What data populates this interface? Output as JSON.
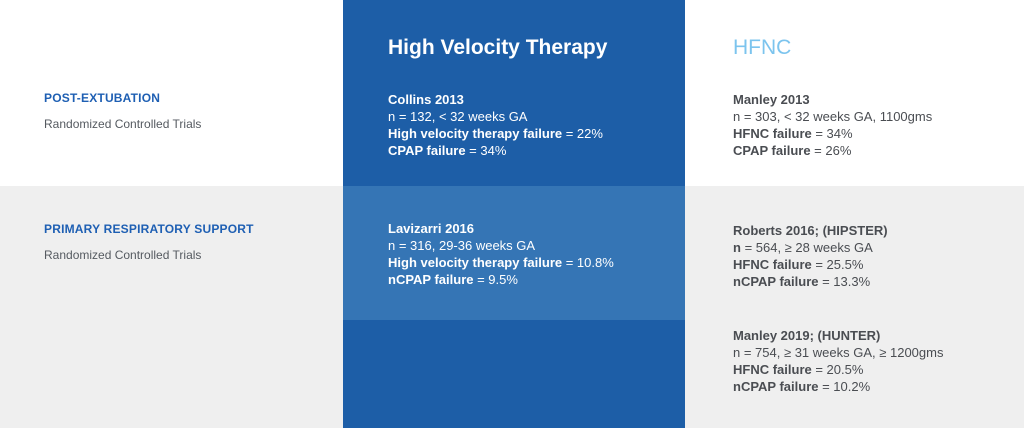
{
  "columns": {
    "hv_title": "High Velocity Therapy",
    "hfnc_title": "HFNC"
  },
  "rows": [
    {
      "heading": "POST-EXTUBATION",
      "subheading": "Randomized Controlled Trials"
    },
    {
      "heading": "PRIMARY RESPIRATORY SUPPORT",
      "subheading": "Randomized Controlled Trials"
    }
  ],
  "studies": {
    "collins": {
      "name": "Collins 2013",
      "detail": "n = 132, < 32 weeks GA",
      "fail1_label": "High velocity therapy failure",
      "fail1_value": " = 22%",
      "fail2_label": "CPAP failure",
      "fail2_value": " = 34%"
    },
    "manley2013": {
      "name": "Manley 2013",
      "detail": "n = 303, < 32 weeks GA, 1100gms",
      "fail1_label": "HFNC failure",
      "fail1_value": " = 34%",
      "fail2_label": "CPAP failure",
      "fail2_value": " = 26%"
    },
    "lavizarri": {
      "name": "Lavizarri 2016",
      "detail": "n = 316, 29-36 weeks GA",
      "fail1_label": "High velocity therapy failure",
      "fail1_value": " = 10.8%",
      "fail2_label": "nCPAP failure",
      "fail2_value": " = 9.5%"
    },
    "roberts": {
      "name": "Roberts 2016; (HIPSTER)",
      "detail_bold": "n",
      "detail": " = 564, ≥ 28 weeks GA",
      "fail1_label": "HFNC failure",
      "fail1_value": " = 25.5%",
      "fail2_label": "nCPAP failure",
      "fail2_value": " = 13.3%"
    },
    "manley2019": {
      "name": "Manley 2019; (HUNTER)",
      "detail": "n = 754, ≥ 31 weeks GA, ≥ 1200gms",
      "fail1_label": "HFNC failure",
      "fail1_value": " = 20.5%",
      "fail2_label": "nCPAP failure",
      "fail2_value": " = 10.2%"
    }
  }
}
